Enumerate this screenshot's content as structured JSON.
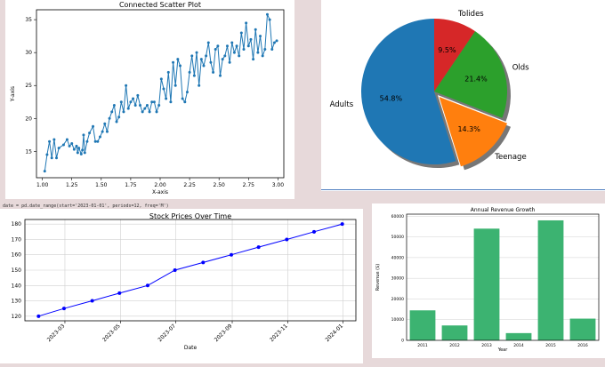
{
  "code_snippet": "date = pd.date_range(start='2023-01-01', periods=12, freq='M')",
  "colors": {
    "background": "#e7d9da",
    "blue_line": "#4f7fc0",
    "scatter": "#1f77b4",
    "stock": "#0000ff",
    "bar": "#3cb371"
  },
  "chart_data": [
    {
      "type": "line",
      "style": "connected-scatter",
      "title": "Connected Scatter Plot",
      "xlabel": "X-axis",
      "ylabel": "Y-axis",
      "xlim": [
        0.95,
        3.05
      ],
      "ylim": [
        11.0,
        36.5
      ],
      "xticks": [
        "1.00",
        "1.25",
        "1.50",
        "1.75",
        "2.00",
        "2.25",
        "2.50",
        "2.75",
        "3.00"
      ],
      "yticks": [
        "15",
        "20",
        "25",
        "30",
        "35"
      ],
      "grid": false,
      "x": [
        1.02,
        1.04,
        1.06,
        1.08,
        1.1,
        1.12,
        1.14,
        1.18,
        1.21,
        1.23,
        1.25,
        1.27,
        1.29,
        1.3,
        1.31,
        1.33,
        1.34,
        1.35,
        1.36,
        1.38,
        1.4,
        1.43,
        1.45,
        1.47,
        1.49,
        1.51,
        1.53,
        1.55,
        1.57,
        1.59,
        1.61,
        1.63,
        1.65,
        1.67,
        1.69,
        1.71,
        1.73,
        1.75,
        1.77,
        1.79,
        1.81,
        1.83,
        1.85,
        1.87,
        1.89,
        1.91,
        1.93,
        1.95,
        1.97,
        1.99,
        2.01,
        2.03,
        2.05,
        2.07,
        2.09,
        2.11,
        2.13,
        2.15,
        2.17,
        2.19,
        2.21,
        2.23,
        2.25,
        2.27,
        2.29,
        2.31,
        2.33,
        2.35,
        2.37,
        2.39,
        2.41,
        2.43,
        2.45,
        2.47,
        2.49,
        2.51,
        2.53,
        2.55,
        2.57,
        2.59,
        2.61,
        2.63,
        2.65,
        2.67,
        2.69,
        2.71,
        2.73,
        2.75,
        2.77,
        2.79,
        2.81,
        2.83,
        2.85,
        2.87,
        2.89,
        2.91,
        2.93,
        2.95,
        2.97,
        2.99
      ],
      "y": [
        12.0,
        14.5,
        16.5,
        14.0,
        16.8,
        14.0,
        15.5,
        16.0,
        16.8,
        15.8,
        16.2,
        15.3,
        15.8,
        14.8,
        15.5,
        14.6,
        15.2,
        17.5,
        14.8,
        16.5,
        17.8,
        18.8,
        16.5,
        16.5,
        17.2,
        18.0,
        19.2,
        18.0,
        20.0,
        21.0,
        22.0,
        19.5,
        20.2,
        22.5,
        21.0,
        25.0,
        21.5,
        22.5,
        23.0,
        22.0,
        23.5,
        22.0,
        21.0,
        21.5,
        22.0,
        21.0,
        22.5,
        22.5,
        21.0,
        22.0,
        26.0,
        24.5,
        23.0,
        27.0,
        22.5,
        28.5,
        25.0,
        29.0,
        28.0,
        23.0,
        22.5,
        24.0,
        27.0,
        29.5,
        26.5,
        30.0,
        25.0,
        29.0,
        28.0,
        29.5,
        31.5,
        28.5,
        27.0,
        30.5,
        31.0,
        26.5,
        29.0,
        29.5,
        31.0,
        28.5,
        31.5,
        30.0,
        31.0,
        29.5,
        33.0,
        30.5,
        34.5,
        31.0,
        32.0,
        29.0,
        33.5,
        30.0,
        32.5,
        29.5,
        30.5,
        35.8,
        35.0,
        30.5,
        31.5,
        31.8
      ]
    },
    {
      "type": "pie",
      "slices": [
        {
          "label": "Tolides",
          "pct_label": "9.5%",
          "value": 9.5,
          "color": "#d62728",
          "explode": 0
        },
        {
          "label": "Olds",
          "pct_label": "21.4%",
          "value": 21.4,
          "color": "#2ca02c",
          "explode": 0
        },
        {
          "label": "Teenage",
          "pct_label": "14.3%",
          "value": 14.3,
          "color": "#ff7f0e",
          "explode": 0.1
        },
        {
          "label": "Adults",
          "pct_label": "54.8%",
          "value": 54.8,
          "color": "#1f77b4",
          "explode": 0
        }
      ],
      "start_angle_deg": 90,
      "direction": "clockwise",
      "shadow": true
    },
    {
      "type": "line",
      "title": "Stock Prices Over Time",
      "xlabel": "Date",
      "ylabel": "",
      "x": [
        "2023-01-31",
        "2023-02-28",
        "2023-03-31",
        "2023-04-30",
        "2023-05-31",
        "2023-06-30",
        "2023-07-31",
        "2023-08-31",
        "2023-09-30",
        "2023-10-31",
        "2023-11-30",
        "2023-12-31"
      ],
      "values": [
        120,
        125,
        130,
        135,
        140,
        150,
        155,
        160,
        165,
        170,
        175,
        180
      ],
      "ylim": [
        117,
        183
      ],
      "yticks": [
        "120",
        "130",
        "140",
        "150",
        "160",
        "170",
        "180"
      ],
      "xtick_dates": [
        "2023-03-01",
        "2023-05-01",
        "2023-07-01",
        "2023-09-01",
        "2023-11-01",
        "2024-01-01"
      ],
      "xtick_labels": [
        "2023-03",
        "2023-05",
        "2023-07",
        "2023-09",
        "2023-11",
        "2024-01"
      ],
      "grid": true,
      "marker": "o"
    },
    {
      "type": "bar",
      "title": "Annual Revenue Growth",
      "xlabel": "Year",
      "ylabel": "Revenue ($)",
      "categories": [
        "2011",
        "2012",
        "2013",
        "2014",
        "2015",
        "2016"
      ],
      "values": [
        14500,
        7200,
        54000,
        3500,
        58000,
        10500
      ],
      "ylim": [
        0,
        61000
      ],
      "yticks": [
        0,
        10000,
        20000,
        30000,
        40000,
        50000,
        60000
      ],
      "grid": true
    }
  ]
}
